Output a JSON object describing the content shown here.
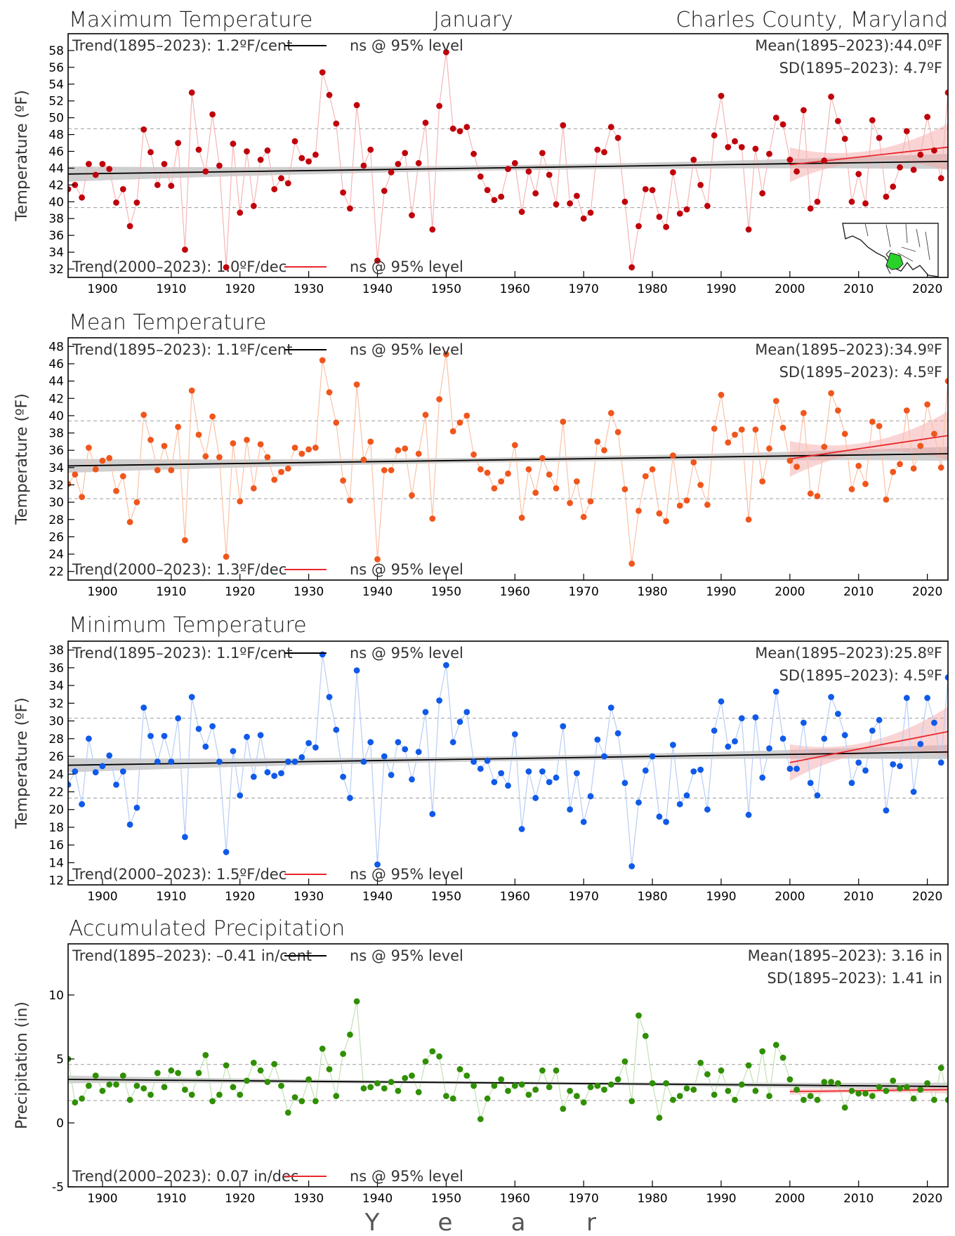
{
  "header": {
    "title": "Maximum Temperature",
    "month": "January",
    "location": "Charles County, Maryland"
  },
  "xaxis": {
    "ticks": [
      1900,
      1910,
      1920,
      1930,
      1940,
      1950,
      1960,
      1970,
      1980,
      1990,
      2000,
      2010,
      2020
    ],
    "letters": [
      "Y",
      "e",
      "a",
      "r"
    ]
  },
  "chart_data": [
    {
      "type": "line",
      "title": "Maximum Temperature",
      "ylabel": "Temperature (ºF)",
      "color": "#c0000b",
      "line_color": "#f5b6b6",
      "xlim": [
        1895,
        2023
      ],
      "ylim": [
        31,
        60
      ],
      "yticks": [
        32,
        34,
        36,
        38,
        40,
        42,
        44,
        46,
        48,
        50,
        52,
        54,
        56,
        58
      ],
      "trend_long_text": "Trend(1895–2023):   1.2ºF/cent",
      "trend_long_sig": "ns @ 95% level",
      "trend_short_text": "Trend(2000–2023):   1.0ºF/dec",
      "trend_short_sig": "ns @ 95% level",
      "mean_text": "Mean(1895–2023):44.0ºF",
      "sd_text": "SD(1895–2023): 4.7ºF",
      "mean": 44.0,
      "sd": 4.7,
      "trend_long": [
        [
          1895,
          43.3
        ],
        [
          2023,
          44.8
        ]
      ],
      "trend_short": [
        [
          2000,
          44.4
        ],
        [
          2023,
          46.5
        ]
      ],
      "band_long": 0.9,
      "band_short": [
        0.6,
        2.8
      ],
      "x": [
        1895,
        1896,
        1897,
        1898,
        1899,
        1900,
        1901,
        1902,
        1903,
        1904,
        1905,
        1906,
        1907,
        1908,
        1909,
        1910,
        1911,
        1912,
        1913,
        1914,
        1915,
        1916,
        1917,
        1918,
        1919,
        1920,
        1921,
        1922,
        1923,
        1924,
        1925,
        1926,
        1927,
        1928,
        1929,
        1930,
        1931,
        1932,
        1933,
        1934,
        1935,
        1936,
        1937,
        1938,
        1939,
        1940,
        1941,
        1942,
        1943,
        1944,
        1945,
        1946,
        1947,
        1948,
        1949,
        1950,
        1951,
        1952,
        1953,
        1954,
        1955,
        1956,
        1957,
        1958,
        1959,
        1960,
        1961,
        1962,
        1963,
        1964,
        1965,
        1966,
        1967,
        1968,
        1969,
        1970,
        1971,
        1972,
        1973,
        1974,
        1975,
        1976,
        1977,
        1978,
        1979,
        1980,
        1981,
        1982,
        1983,
        1984,
        1985,
        1986,
        1987,
        1988,
        1989,
        1990,
        1991,
        1992,
        1993,
        1994,
        1995,
        1996,
        1997,
        1998,
        1999,
        2000,
        2001,
        2002,
        2003,
        2004,
        2005,
        2006,
        2007,
        2008,
        2009,
        2010,
        2011,
        2012,
        2013,
        2014,
        2015,
        2016,
        2017,
        2018,
        2019,
        2020,
        2021,
        2022,
        2023
      ],
      "values": [
        41.5,
        42.0,
        40.5,
        44.5,
        43.2,
        44.5,
        43.9,
        39.9,
        41.5,
        37.1,
        39.9,
        48.6,
        45.9,
        42.0,
        44.5,
        41.9,
        47.0,
        34.3,
        53.0,
        46.2,
        43.6,
        50.4,
        44.3,
        32.2,
        46.9,
        38.7,
        46.0,
        39.5,
        45.0,
        46.1,
        41.5,
        42.8,
        42.2,
        47.2,
        45.2,
        44.8,
        45.6,
        55.4,
        52.7,
        49.3,
        41.1,
        39.2,
        51.5,
        44.3,
        46.2,
        33.0,
        41.3,
        43.5,
        44.5,
        45.8,
        38.4,
        44.6,
        49.4,
        36.7,
        51.4,
        57.8,
        48.7,
        48.4,
        48.9,
        45.7,
        43.0,
        41.4,
        40.2,
        40.6,
        43.9,
        44.6,
        38.8,
        43.6,
        41.0,
        45.8,
        43.2,
        39.7,
        49.1,
        39.8,
        40.7,
        38.0,
        38.7,
        46.2,
        45.9,
        48.9,
        47.6,
        40.0,
        32.2,
        37.1,
        41.5,
        41.4,
        38.2,
        37.0,
        43.5,
        38.6,
        39.1,
        45.0,
        42.0,
        39.5,
        47.9,
        52.6,
        46.5,
        47.2,
        46.5,
        36.7,
        46.3,
        41.0,
        45.7,
        50.0,
        49.2,
        45.0,
        43.6,
        50.9,
        39.2,
        40.0,
        44.9,
        52.5,
        49.6,
        47.5,
        40.0,
        43.3,
        39.8,
        49.7,
        47.6,
        40.6,
        41.8,
        44.1,
        48.4,
        43.8,
        45.6,
        50.1,
        46.1,
        42.8,
        53.0
      ]
    },
    {
      "type": "line",
      "title": "Mean Temperature",
      "ylabel": "Temperature (ºF)",
      "color": "#f0561c",
      "line_color": "#f9c2a6",
      "xlim": [
        1895,
        2023
      ],
      "ylim": [
        21,
        49
      ],
      "yticks": [
        22,
        24,
        26,
        28,
        30,
        32,
        34,
        36,
        38,
        40,
        42,
        44,
        46,
        48
      ],
      "trend_long_text": "Trend(1895–2023):   1.1ºF/cent",
      "trend_long_sig": "ns @ 95% level",
      "trend_short_text": "Trend(2000–2023):   1.3ºF/dec",
      "trend_short_sig": "ns @ 95% level",
      "mean_text": "Mean(1895–2023):34.9ºF",
      "sd_text": "SD(1895–2023): 4.5ºF",
      "mean": 34.9,
      "sd": 4.5,
      "trend_long": [
        [
          1895,
          34.2
        ],
        [
          2023,
          35.6
        ]
      ],
      "trend_short": [
        [
          2000,
          35.0
        ],
        [
          2023,
          37.7
        ]
      ],
      "band_long": 0.8,
      "band_short": [
        0.6,
        2.8
      ],
      "x": [
        1895,
        1896,
        1897,
        1898,
        1899,
        1900,
        1901,
        1902,
        1903,
        1904,
        1905,
        1906,
        1907,
        1908,
        1909,
        1910,
        1911,
        1912,
        1913,
        1914,
        1915,
        1916,
        1917,
        1918,
        1919,
        1920,
        1921,
        1922,
        1923,
        1924,
        1925,
        1926,
        1927,
        1928,
        1929,
        1930,
        1931,
        1932,
        1933,
        1934,
        1935,
        1936,
        1937,
        1938,
        1939,
        1940,
        1941,
        1942,
        1943,
        1944,
        1945,
        1946,
        1947,
        1948,
        1949,
        1950,
        1951,
        1952,
        1953,
        1954,
        1955,
        1956,
        1957,
        1958,
        1959,
        1960,
        1961,
        1962,
        1963,
        1964,
        1965,
        1966,
        1967,
        1968,
        1969,
        1970,
        1971,
        1972,
        1973,
        1974,
        1975,
        1976,
        1977,
        1978,
        1979,
        1980,
        1981,
        1982,
        1983,
        1984,
        1985,
        1986,
        1987,
        1988,
        1989,
        1990,
        1991,
        1992,
        1993,
        1994,
        1995,
        1996,
        1997,
        1998,
        1999,
        2000,
        2001,
        2002,
        2003,
        2004,
        2005,
        2006,
        2007,
        2008,
        2009,
        2010,
        2011,
        2012,
        2013,
        2014,
        2015,
        2016,
        2017,
        2018,
        2019,
        2020,
        2021,
        2022,
        2023
      ],
      "values": [
        32.1,
        33.2,
        30.6,
        36.3,
        33.8,
        34.8,
        35.1,
        31.3,
        33.0,
        27.7,
        30.0,
        40.1,
        37.2,
        33.7,
        36.5,
        33.7,
        38.7,
        25.6,
        42.9,
        37.8,
        35.3,
        39.9,
        35.2,
        23.7,
        36.8,
        30.1,
        37.2,
        31.6,
        36.7,
        35.2,
        32.6,
        33.5,
        33.9,
        36.3,
        35.6,
        36.1,
        36.3,
        46.4,
        42.7,
        39.2,
        32.5,
        30.2,
        43.6,
        34.9,
        37.0,
        23.4,
        33.7,
        33.7,
        36.0,
        36.2,
        30.8,
        35.6,
        40.1,
        28.1,
        41.9,
        47.1,
        38.2,
        39.2,
        40.0,
        35.5,
        33.8,
        33.4,
        31.6,
        32.4,
        33.3,
        36.6,
        28.2,
        33.8,
        31.1,
        35.1,
        33.2,
        31.6,
        39.3,
        29.9,
        32.4,
        28.3,
        30.1,
        37.0,
        36.0,
        40.3,
        38.1,
        31.5,
        22.9,
        29.0,
        33.0,
        33.8,
        28.7,
        27.8,
        35.4,
        29.6,
        30.2,
        34.6,
        32.0,
        29.7,
        38.5,
        42.4,
        36.9,
        37.8,
        38.4,
        28.0,
        38.4,
        32.4,
        36.2,
        41.7,
        38.6,
        34.8,
        34.1,
        40.3,
        31.0,
        30.7,
        36.4,
        42.6,
        40.6,
        37.9,
        31.5,
        34.2,
        32.1,
        39.3,
        38.8,
        30.3,
        33.5,
        34.4,
        40.6,
        33.9,
        36.5,
        41.3,
        37.9,
        34.0,
        44.0
      ]
    },
    {
      "type": "line",
      "title": "Minimum Temperature",
      "ylabel": "Temperature (ºF)",
      "color": "#0f5ae8",
      "line_color": "#b8cdf4",
      "xlim": [
        1895,
        2023
      ],
      "ylim": [
        11.5,
        39
      ],
      "yticks": [
        12,
        14,
        16,
        18,
        20,
        22,
        24,
        26,
        28,
        30,
        32,
        34,
        36,
        38
      ],
      "trend_long_text": "Trend(1895–2023):   1.1ºF/cent",
      "trend_long_sig": "ns @ 95% level",
      "trend_short_text": "Trend(2000–2023):   1.5ºF/dec",
      "trend_short_sig": "ns @ 95% level",
      "mean_text": "Mean(1895–2023):25.8ºF",
      "sd_text": "SD(1895–2023): 4.5ºF",
      "mean": 25.8,
      "sd": 4.5,
      "trend_long": [
        [
          1895,
          25.0
        ],
        [
          2023,
          26.5
        ]
      ],
      "trend_short": [
        [
          2000,
          25.3
        ],
        [
          2023,
          28.8
        ]
      ],
      "band_long": 0.8,
      "band_short": [
        0.6,
        2.8
      ],
      "x": [
        1895,
        1896,
        1897,
        1898,
        1899,
        1900,
        1901,
        1902,
        1903,
        1904,
        1905,
        1906,
        1907,
        1908,
        1909,
        1910,
        1911,
        1912,
        1913,
        1914,
        1915,
        1916,
        1917,
        1918,
        1919,
        1920,
        1921,
        1922,
        1923,
        1924,
        1925,
        1926,
        1927,
        1928,
        1929,
        1930,
        1931,
        1932,
        1933,
        1934,
        1935,
        1936,
        1937,
        1938,
        1939,
        1940,
        1941,
        1942,
        1943,
        1944,
        1945,
        1946,
        1947,
        1948,
        1949,
        1950,
        1951,
        1952,
        1953,
        1954,
        1955,
        1956,
        1957,
        1958,
        1959,
        1960,
        1961,
        1962,
        1963,
        1964,
        1965,
        1966,
        1967,
        1968,
        1969,
        1970,
        1971,
        1972,
        1973,
        1974,
        1975,
        1976,
        1977,
        1978,
        1979,
        1980,
        1981,
        1982,
        1983,
        1984,
        1985,
        1986,
        1987,
        1988,
        1989,
        1990,
        1991,
        1992,
        1993,
        1994,
        1995,
        1996,
        1997,
        1998,
        1999,
        2000,
        2001,
        2002,
        2003,
        2004,
        2005,
        2006,
        2007,
        2008,
        2009,
        2010,
        2011,
        2012,
        2013,
        2014,
        2015,
        2016,
        2017,
        2018,
        2019,
        2020,
        2021,
        2022,
        2023
      ],
      "values": [
        22.8,
        24.3,
        20.6,
        28.0,
        24.2,
        24.9,
        26.1,
        22.8,
        24.3,
        18.3,
        20.2,
        31.5,
        28.3,
        25.4,
        28.3,
        25.4,
        30.3,
        16.9,
        32.7,
        29.1,
        27.1,
        29.4,
        25.4,
        15.2,
        26.6,
        21.6,
        28.2,
        23.7,
        28.4,
        24.2,
        23.8,
        24.1,
        25.4,
        25.4,
        25.9,
        27.5,
        27.0,
        37.5,
        32.7,
        29.0,
        23.7,
        21.3,
        35.7,
        25.4,
        27.6,
        13.8,
        26.0,
        23.9,
        27.6,
        26.8,
        23.4,
        26.5,
        31.0,
        19.5,
        32.3,
        36.3,
        27.6,
        29.9,
        31.0,
        25.4,
        24.6,
        25.5,
        23.1,
        24.1,
        22.7,
        28.5,
        17.8,
        24.3,
        21.3,
        24.3,
        23.1,
        23.6,
        29.4,
        20.0,
        24.1,
        18.6,
        21.5,
        27.9,
        26.0,
        31.5,
        28.6,
        23.0,
        13.6,
        20.8,
        24.4,
        26.0,
        19.2,
        18.6,
        27.3,
        20.6,
        21.6,
        24.3,
        24.5,
        20.0,
        28.9,
        32.2,
        27.1,
        27.7,
        30.3,
        19.4,
        30.4,
        23.6,
        26.9,
        33.3,
        28.0,
        24.6,
        24.6,
        29.8,
        23.0,
        21.6,
        28.0,
        32.7,
        30.8,
        28.4,
        23.0,
        25.3,
        24.4,
        28.9,
        30.1,
        19.9,
        25.1,
        24.9,
        32.6,
        22.0,
        27.4,
        32.6,
        29.8,
        25.3,
        34.9
      ]
    },
    {
      "type": "line",
      "title": "Accumulated Precipitation",
      "ylabel": "Precipitation (in)",
      "color": "#2f8f00",
      "line_color": "#c3e0b4",
      "xlim": [
        1895,
        2023
      ],
      "ylim": [
        -5,
        14
      ],
      "yticks": [
        -5,
        0,
        5,
        10
      ],
      "trend_long_text": "Trend(1895–2023): –0.41 in/cent",
      "trend_long_sig": "ns @ 95% level",
      "trend_short_text": "Trend(2000–2023):   0.07 in/dec",
      "trend_short_sig": "ns @ 95% level",
      "mean_text": "Mean(1895–2023): 3.16 in",
      "sd_text": "SD(1895–2023): 1.41 in",
      "mean": 3.16,
      "sd": 1.41,
      "trend_long": [
        [
          1895,
          3.4
        ],
        [
          2023,
          2.85
        ]
      ],
      "trend_short": [
        [
          2000,
          2.45
        ],
        [
          2023,
          2.6
        ]
      ],
      "band_long": 0.3,
      "band_short": [
        0.15,
        0.3
      ],
      "x": [
        1895,
        1896,
        1897,
        1898,
        1899,
        1900,
        1901,
        1902,
        1903,
        1904,
        1905,
        1906,
        1907,
        1908,
        1909,
        1910,
        1911,
        1912,
        1913,
        1914,
        1915,
        1916,
        1917,
        1918,
        1919,
        1920,
        1921,
        1922,
        1923,
        1924,
        1925,
        1926,
        1927,
        1928,
        1929,
        1930,
        1931,
        1932,
        1933,
        1934,
        1935,
        1936,
        1937,
        1938,
        1939,
        1940,
        1941,
        1942,
        1943,
        1944,
        1945,
        1946,
        1947,
        1948,
        1949,
        1950,
        1951,
        1952,
        1953,
        1954,
        1955,
        1956,
        1957,
        1958,
        1959,
        1960,
        1961,
        1962,
        1963,
        1964,
        1965,
        1966,
        1967,
        1968,
        1969,
        1970,
        1971,
        1972,
        1973,
        1974,
        1975,
        1976,
        1977,
        1978,
        1979,
        1980,
        1981,
        1982,
        1983,
        1984,
        1985,
        1986,
        1987,
        1988,
        1989,
        1990,
        1991,
        1992,
        1993,
        1994,
        1995,
        1996,
        1997,
        1998,
        1999,
        2000,
        2001,
        2002,
        2003,
        2004,
        2005,
        2006,
        2007,
        2008,
        2009,
        2010,
        2011,
        2012,
        2013,
        2014,
        2015,
        2016,
        2017,
        2018,
        2019,
        2020,
        2021,
        2022,
        2023
      ],
      "values": [
        5.0,
        1.6,
        1.9,
        2.9,
        3.7,
        2.5,
        3.0,
        3.0,
        3.7,
        1.8,
        2.9,
        2.7,
        2.2,
        3.9,
        2.8,
        4.1,
        3.9,
        2.6,
        2.2,
        3.9,
        5.3,
        1.7,
        2.2,
        4.5,
        2.8,
        2.2,
        3.3,
        4.7,
        4.1,
        3.2,
        4.6,
        2.9,
        0.8,
        2.0,
        1.7,
        3.4,
        1.7,
        5.8,
        4.2,
        2.1,
        5.4,
        6.9,
        9.5,
        2.7,
        2.8,
        3.1,
        2.7,
        3.2,
        2.5,
        3.5,
        3.7,
        2.4,
        4.8,
        5.6,
        5.2,
        2.1,
        1.9,
        4.2,
        3.7,
        2.9,
        0.3,
        1.9,
        2.9,
        3.4,
        2.5,
        2.9,
        3.0,
        2.2,
        2.6,
        4.1,
        2.8,
        4.1,
        1.1,
        2.5,
        2.1,
        1.6,
        2.8,
        2.9,
        2.6,
        3.0,
        3.4,
        4.8,
        1.7,
        8.4,
        6.8,
        3.1,
        0.4,
        3.1,
        1.8,
        2.1,
        2.7,
        2.6,
        4.7,
        3.8,
        2.2,
        4.1,
        2.5,
        1.8,
        3.0,
        4.5,
        2.5,
        5.6,
        2.1,
        6.1,
        5.1,
        3.4,
        2.6,
        1.8,
        2.1,
        1.8,
        3.2,
        3.2,
        3.1,
        1.2,
        2.5,
        2.3,
        2.3,
        2.1,
        2.8,
        2.5,
        3.3,
        2.7,
        2.8,
        1.9,
        2.6,
        3.1,
        1.8,
        4.3,
        1.8
      ]
    }
  ]
}
